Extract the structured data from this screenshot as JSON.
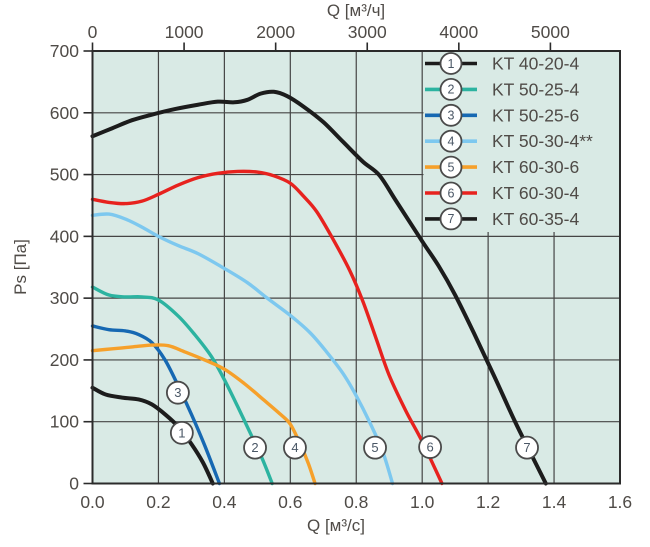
{
  "chart_data": {
    "type": "line",
    "title": "",
    "legend_position": "top-right-inside",
    "grid": true,
    "axes": {
      "x_bottom": {
        "label": "Q [м³/с]",
        "min": 0,
        "max": 1.6,
        "tick_labels": [
          "0.0",
          "0.2",
          "0.4",
          "0.6",
          "0.8",
          "1.0",
          "1.2",
          "1.4",
          "1.6"
        ],
        "tick_values": [
          0,
          0.2,
          0.4,
          0.6,
          0.8,
          1.0,
          1.2,
          1.4,
          1.6
        ]
      },
      "x_top": {
        "label": "Q [м³/ч]",
        "tick_labels": [
          "0",
          "1000",
          "2000",
          "3000",
          "4000",
          "5000"
        ],
        "tick_values": [
          0,
          1000,
          2000,
          3000,
          4000,
          5000
        ],
        "conversion_factor": 3600
      },
      "y": {
        "label": "Ps [Па]",
        "min": 0,
        "max": 700,
        "tick_labels": [
          "0",
          "100",
          "200",
          "300",
          "400",
          "500",
          "600",
          "700"
        ],
        "tick_values": [
          0,
          100,
          200,
          300,
          400,
          500,
          600,
          700
        ]
      }
    },
    "series": [
      {
        "num": "1",
        "name": "KT 40-20-4",
        "color": "#1c1c1c",
        "width": 4,
        "points": [
          [
            0,
            155
          ],
          [
            0.04,
            144
          ],
          [
            0.09,
            139
          ],
          [
            0.14,
            136
          ],
          [
            0.18,
            128
          ],
          [
            0.22,
            112
          ],
          [
            0.26,
            92
          ],
          [
            0.3,
            64
          ],
          [
            0.335,
            34
          ],
          [
            0.365,
            0
          ]
        ]
      },
      {
        "num": "2",
        "name": "KT 50-25-4",
        "color": "#2cb3a0",
        "width": 3.4,
        "points": [
          [
            0,
            318
          ],
          [
            0.05,
            305
          ],
          [
            0.1,
            302
          ],
          [
            0.15,
            302
          ],
          [
            0.2,
            297
          ],
          [
            0.26,
            271
          ],
          [
            0.31,
            241
          ],
          [
            0.36,
            206
          ],
          [
            0.4,
            168
          ],
          [
            0.44,
            125
          ],
          [
            0.48,
            80
          ],
          [
            0.515,
            40
          ],
          [
            0.545,
            0
          ]
        ]
      },
      {
        "num": "3",
        "name": "KT 50-25-6",
        "color": "#1668b2",
        "width": 3.4,
        "points": [
          [
            0,
            255
          ],
          [
            0.05,
            249
          ],
          [
            0.1,
            247
          ],
          [
            0.14,
            241
          ],
          [
            0.18,
            228
          ],
          [
            0.22,
            200
          ],
          [
            0.26,
            158
          ],
          [
            0.3,
            112
          ],
          [
            0.34,
            62
          ],
          [
            0.385,
            0
          ]
        ]
      },
      {
        "num": "4",
        "name": "KT 50-30-4**",
        "color": "#7dc8ef",
        "width": 3.4,
        "points": [
          [
            0,
            434
          ],
          [
            0.05,
            436
          ],
          [
            0.1,
            428
          ],
          [
            0.15,
            415
          ],
          [
            0.2,
            400
          ],
          [
            0.26,
            385
          ],
          [
            0.32,
            372
          ],
          [
            0.4,
            348
          ],
          [
            0.47,
            325
          ],
          [
            0.53,
            300
          ],
          [
            0.6,
            272
          ],
          [
            0.66,
            244
          ],
          [
            0.71,
            213
          ],
          [
            0.76,
            178
          ],
          [
            0.8,
            142
          ],
          [
            0.84,
            100
          ],
          [
            0.88,
            52
          ],
          [
            0.91,
            0
          ]
        ]
      },
      {
        "num": "5",
        "name": "KT 60-30-6",
        "color": "#f6a02a",
        "width": 3.4,
        "points": [
          [
            0,
            215
          ],
          [
            0.06,
            218
          ],
          [
            0.12,
            221
          ],
          [
            0.18,
            224
          ],
          [
            0.23,
            223
          ],
          [
            0.28,
            213
          ],
          [
            0.34,
            200
          ],
          [
            0.4,
            185
          ],
          [
            0.46,
            162
          ],
          [
            0.52,
            135
          ],
          [
            0.57,
            112
          ],
          [
            0.6,
            96
          ],
          [
            0.63,
            64
          ],
          [
            0.655,
            32
          ],
          [
            0.675,
            0
          ]
        ]
      },
      {
        "num": "6",
        "name": "KT 60-30-4",
        "color": "#e7221e",
        "width": 3.4,
        "points": [
          [
            0,
            460
          ],
          [
            0.05,
            455
          ],
          [
            0.1,
            453
          ],
          [
            0.15,
            457
          ],
          [
            0.2,
            468
          ],
          [
            0.26,
            483
          ],
          [
            0.32,
            495
          ],
          [
            0.38,
            502
          ],
          [
            0.44,
            505
          ],
          [
            0.5,
            504
          ],
          [
            0.55,
            498
          ],
          [
            0.6,
            486
          ],
          [
            0.64,
            465
          ],
          [
            0.68,
            440
          ],
          [
            0.73,
            395
          ],
          [
            0.78,
            345
          ],
          [
            0.82,
            295
          ],
          [
            0.86,
            235
          ],
          [
            0.9,
            175
          ],
          [
            0.95,
            118
          ],
          [
            1.0,
            68
          ],
          [
            1.06,
            0
          ]
        ]
      },
      {
        "num": "7",
        "name": "KT 60-35-4",
        "color": "#1c1c1c",
        "width": 4,
        "points": [
          [
            0,
            562
          ],
          [
            0.06,
            575
          ],
          [
            0.12,
            588
          ],
          [
            0.18,
            597
          ],
          [
            0.25,
            606
          ],
          [
            0.32,
            613
          ],
          [
            0.38,
            618
          ],
          [
            0.43,
            617
          ],
          [
            0.47,
            621
          ],
          [
            0.51,
            631
          ],
          [
            0.55,
            634
          ],
          [
            0.59,
            627
          ],
          [
            0.64,
            610
          ],
          [
            0.7,
            585
          ],
          [
            0.76,
            553
          ],
          [
            0.82,
            521
          ],
          [
            0.87,
            499
          ],
          [
            0.92,
            458
          ],
          [
            1.0,
            392
          ],
          [
            1.05,
            352
          ],
          [
            1.1,
            305
          ],
          [
            1.16,
            240
          ],
          [
            1.22,
            172
          ],
          [
            1.28,
            102
          ],
          [
            1.33,
            48
          ],
          [
            1.375,
            0
          ]
        ]
      }
    ],
    "callouts": [
      {
        "num": "1",
        "q": 0.271,
        "ps": 82
      },
      {
        "num": "2",
        "q": 0.493,
        "ps": 58
      },
      {
        "num": "3",
        "q": 0.259,
        "ps": 147
      },
      {
        "num": "4",
        "q": 0.614,
        "ps": 58
      },
      {
        "num": "5",
        "q": 0.857,
        "ps": 58
      },
      {
        "num": "6",
        "q": 1.024,
        "ps": 59
      },
      {
        "num": "7",
        "q": 1.318,
        "ps": 58
      }
    ]
  },
  "legend": {
    "entries": [
      {
        "num": "1",
        "label": "KT 40-20-4",
        "color": "#1c1c1c"
      },
      {
        "num": "2",
        "label": "KT 50-25-4",
        "color": "#2cb3a0"
      },
      {
        "num": "3",
        "label": "KT 50-25-6",
        "color": "#1668b2"
      },
      {
        "num": "4",
        "label": "KT 50-30-4**",
        "color": "#7dc8ef"
      },
      {
        "num": "5",
        "label": "KT 60-30-6",
        "color": "#f6a02a"
      },
      {
        "num": "6",
        "label": "KT 60-30-4",
        "color": "#e7221e"
      },
      {
        "num": "7",
        "label": "KT 60-35-4",
        "color": "#1c1c1c"
      }
    ]
  },
  "colors": {
    "page_bg": "#ffffff",
    "plot_bg": "#d9eae5",
    "grid": "#454545",
    "border": "#2b2b2b",
    "axis_text": "#4f4b47",
    "marker_fill": "#ffffff",
    "marker_stroke": "#4a4a4a",
    "marker_digit": "#4a5766"
  }
}
